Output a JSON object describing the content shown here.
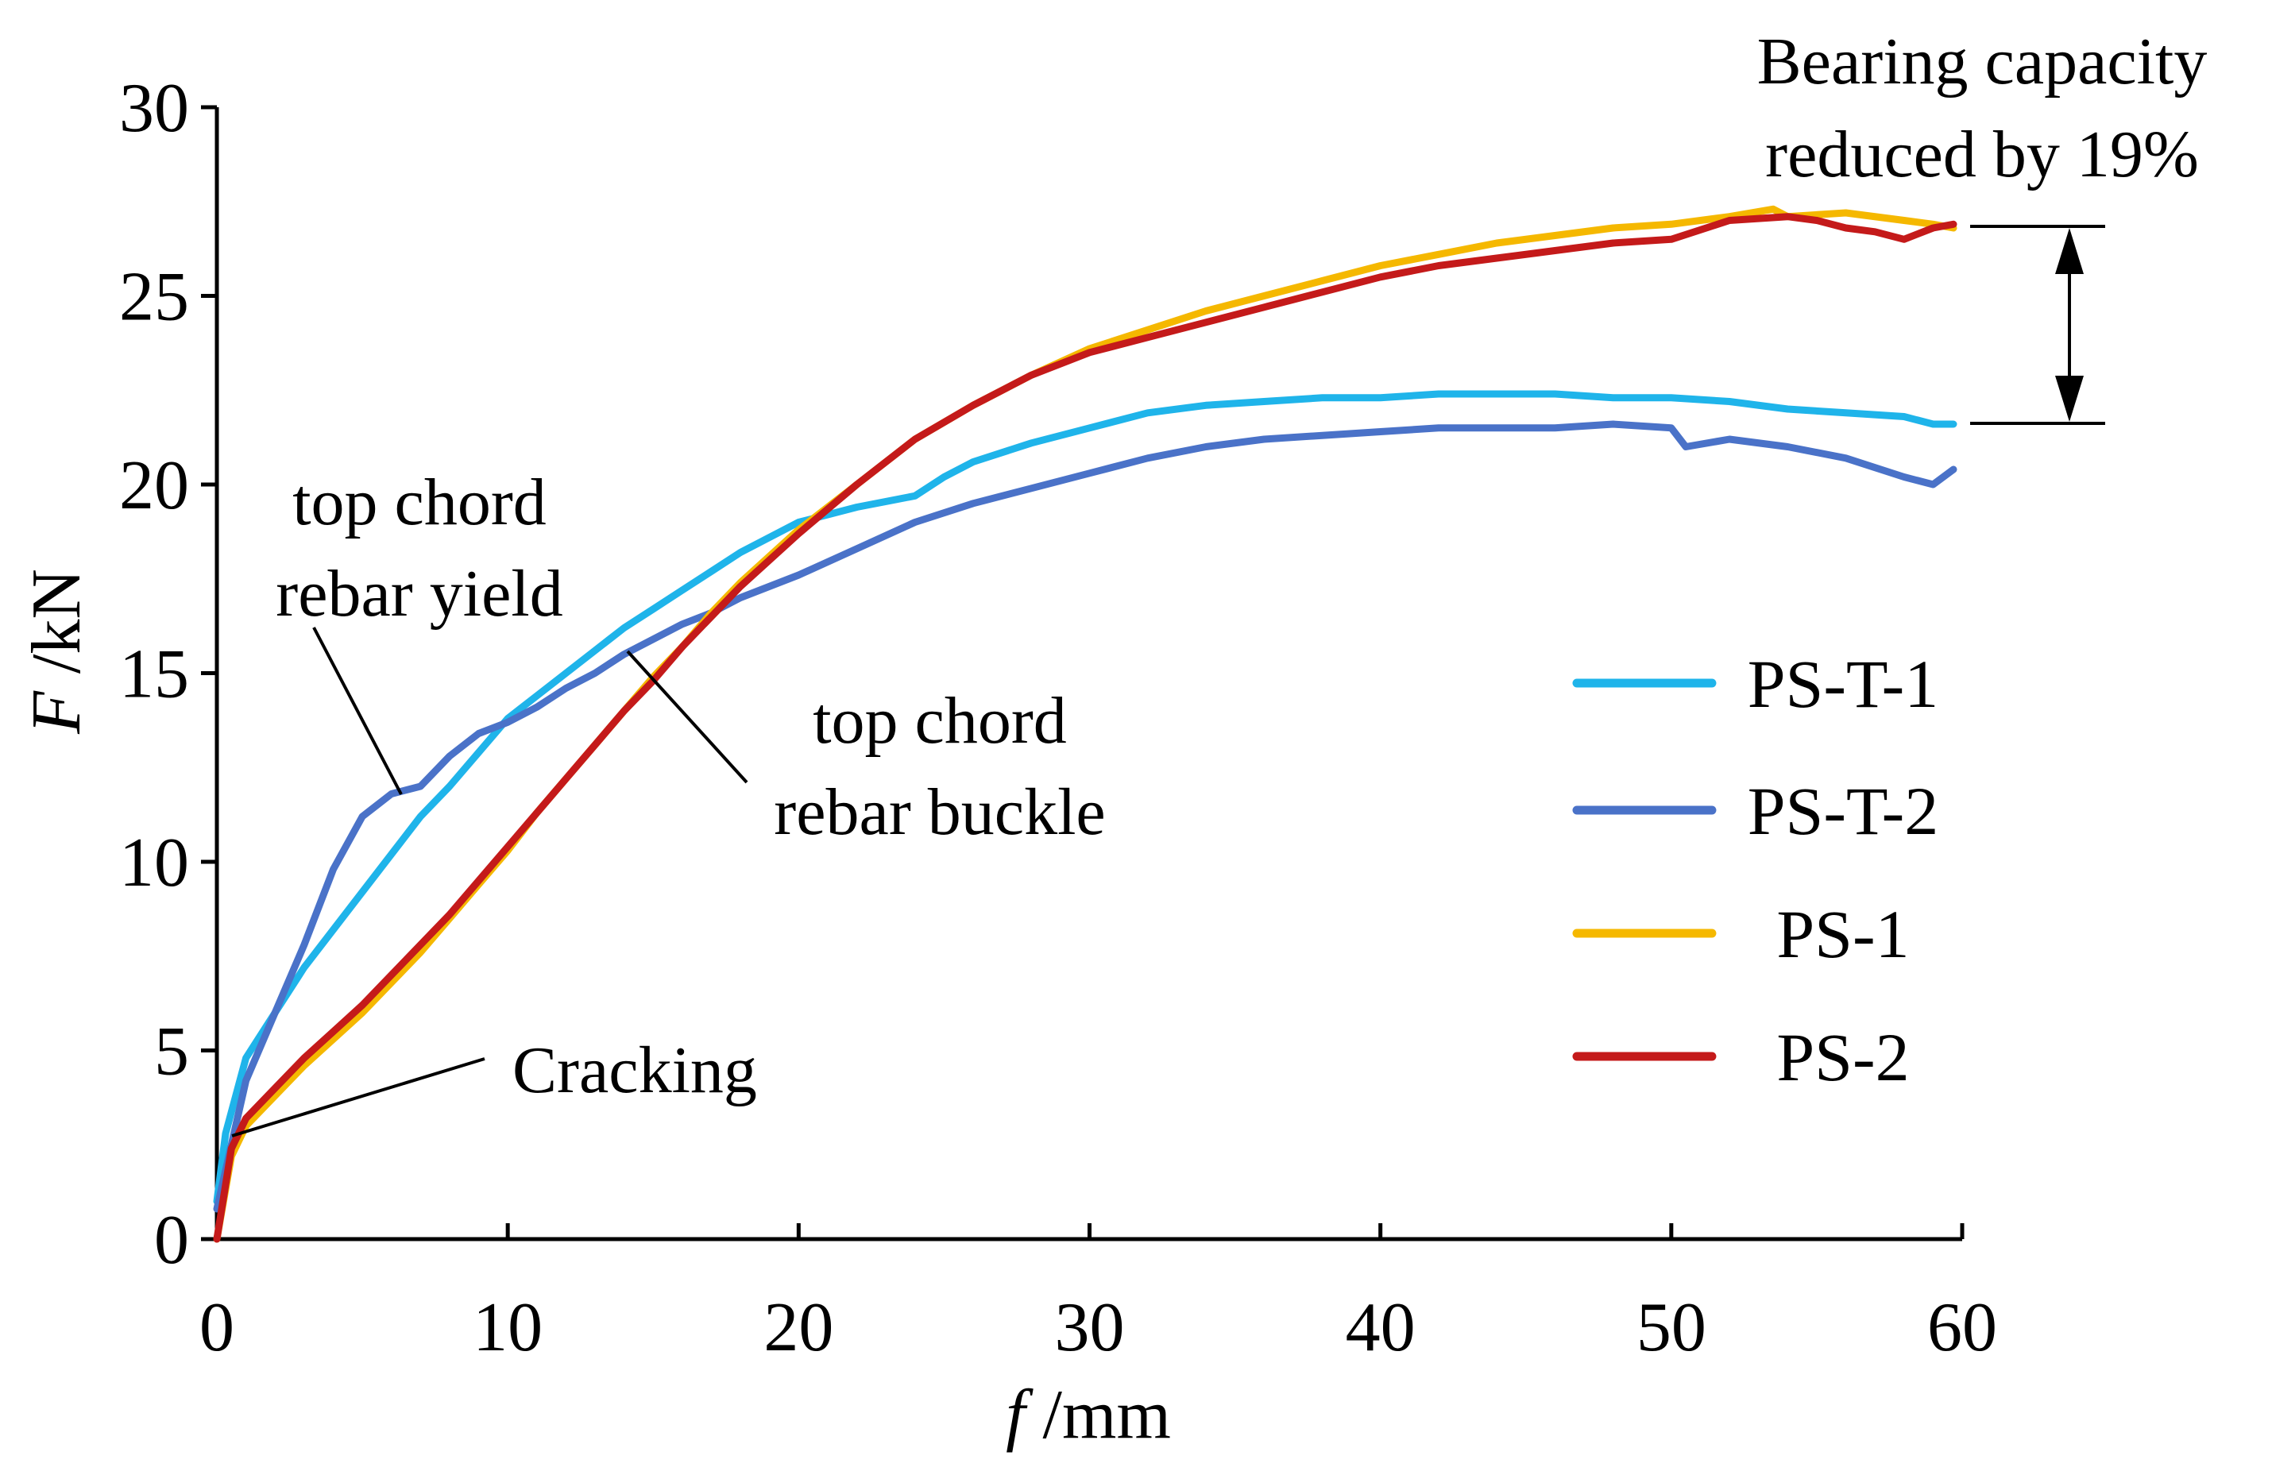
{
  "chart_data": {
    "type": "line",
    "title": "",
    "xlabel_italic": "f",
    "xlabel_unit": " /mm",
    "ylabel_italic": "F",
    "ylabel_unit": " /kN",
    "xlim": [
      0,
      60
    ],
    "ylim": [
      0,
      30
    ],
    "xticks": [
      0,
      10,
      20,
      30,
      40,
      50,
      60
    ],
    "yticks": [
      0,
      5,
      10,
      15,
      20,
      25,
      30
    ],
    "grid": false,
    "legend_position": "right",
    "series": [
      {
        "name": "PS-T-1",
        "color": "#1fb4ea",
        "x": [
          0,
          0.3,
          1,
          2,
          3,
          4,
          5,
          6,
          7,
          8,
          9,
          10,
          11,
          12,
          13,
          14,
          15,
          16,
          17,
          18,
          19,
          20,
          22,
          24,
          25,
          26,
          28,
          30,
          32,
          34,
          36,
          38,
          40,
          42,
          44,
          46,
          48,
          50,
          52,
          54,
          56,
          58,
          59,
          59.7
        ],
        "y": [
          1.0,
          2.8,
          4.8,
          6.0,
          7.2,
          8.2,
          9.2,
          10.2,
          11.2,
          12.0,
          12.9,
          13.8,
          14.4,
          15.0,
          15.6,
          16.2,
          16.7,
          17.2,
          17.7,
          18.2,
          18.6,
          19.0,
          19.4,
          19.7,
          20.2,
          20.6,
          21.1,
          21.5,
          21.9,
          22.1,
          22.2,
          22.3,
          22.3,
          22.4,
          22.4,
          22.4,
          22.3,
          22.3,
          22.2,
          22.0,
          21.9,
          21.8,
          21.6,
          21.6
        ]
      },
      {
        "name": "PS-T-2",
        "color": "#4a72c8",
        "x": [
          0,
          1,
          2,
          3,
          4,
          5,
          6,
          7,
          8,
          9,
          10,
          11,
          12,
          13,
          14,
          15,
          16,
          17,
          18,
          20,
          22,
          24,
          26,
          28,
          30,
          32,
          34,
          36,
          38,
          40,
          42,
          44,
          46,
          48,
          50,
          50.5,
          52,
          54,
          56,
          58,
          59,
          59.7
        ],
        "y": [
          0.8,
          4.2,
          6.0,
          7.8,
          9.8,
          11.2,
          11.8,
          12.0,
          12.8,
          13.4,
          13.7,
          14.1,
          14.6,
          15.0,
          15.5,
          15.9,
          16.3,
          16.6,
          17.0,
          17.6,
          18.3,
          19.0,
          19.5,
          19.9,
          20.3,
          20.7,
          21.0,
          21.2,
          21.3,
          21.4,
          21.5,
          21.5,
          21.5,
          21.6,
          21.5,
          21.0,
          21.2,
          21.0,
          20.7,
          20.2,
          20.0,
          20.4
        ]
      },
      {
        "name": "PS-1",
        "color": "#f5b800",
        "x": [
          0,
          0.5,
          1,
          2,
          3,
          4,
          5,
          6,
          7,
          8,
          9,
          10,
          11,
          12,
          13,
          14,
          15,
          16,
          17,
          18,
          19,
          20,
          22,
          24,
          26,
          28,
          30,
          32,
          34,
          36,
          38,
          40,
          42,
          44,
          46,
          48,
          50,
          52,
          53.5,
          54,
          56,
          58,
          59,
          59.7
        ],
        "y": [
          0,
          2.2,
          3.0,
          3.8,
          4.6,
          5.3,
          6.0,
          6.8,
          7.6,
          8.5,
          9.4,
          10.3,
          11.3,
          12.2,
          13.1,
          14.0,
          14.9,
          15.7,
          16.6,
          17.4,
          18.1,
          18.8,
          20.0,
          21.2,
          22.1,
          22.9,
          23.6,
          24.1,
          24.6,
          25.0,
          25.4,
          25.8,
          26.1,
          26.4,
          26.6,
          26.8,
          26.9,
          27.1,
          27.3,
          27.1,
          27.2,
          27.0,
          26.9,
          26.8
        ]
      },
      {
        "name": "PS-2",
        "color": "#c41a1a",
        "x": [
          0,
          0.5,
          1,
          2,
          3,
          4,
          5,
          6,
          7,
          8,
          9,
          10,
          11,
          12,
          13,
          14,
          15,
          16,
          17,
          18,
          19,
          20,
          22,
          24,
          26,
          28,
          30,
          32,
          34,
          36,
          38,
          40,
          42,
          44,
          46,
          48,
          50,
          52,
          54,
          55,
          56,
          57,
          58,
          59,
          59.7
        ],
        "y": [
          0,
          2.4,
          3.2,
          4.0,
          4.8,
          5.5,
          6.2,
          7.0,
          7.8,
          8.6,
          9.5,
          10.4,
          11.3,
          12.2,
          13.1,
          14.0,
          14.8,
          15.7,
          16.5,
          17.3,
          18.0,
          18.7,
          20.0,
          21.2,
          22.1,
          22.9,
          23.5,
          23.9,
          24.3,
          24.7,
          25.1,
          25.5,
          25.8,
          26.0,
          26.2,
          26.4,
          26.5,
          27.0,
          27.1,
          27.0,
          26.8,
          26.7,
          26.5,
          26.8,
          26.9
        ]
      }
    ],
    "annotations": {
      "cracking": "Cracking",
      "yield_line1": "top chord",
      "yield_line2": "rebar yield",
      "buckle_line1": "top chord",
      "buckle_line2": "rebar buckle",
      "bearing_line1": "Bearing capacity",
      "bearing_line2": "reduced by 19%"
    }
  }
}
